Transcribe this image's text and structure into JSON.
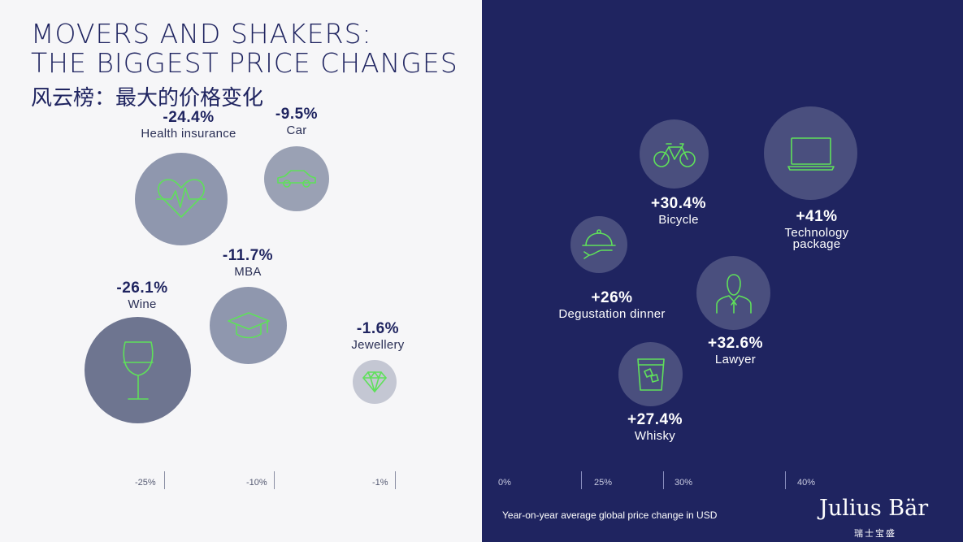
{
  "title_line1": "MOVERS AND SHAKERS:",
  "title_line2": "THE BIGGEST PRICE CHANGES",
  "subtitle_cn": "风云榜：最大的价格变化",
  "caption": "Year-on-year average global price change in USD",
  "brand": "Julius Bär",
  "brand_cn": "瑞士宝盛",
  "colors": {
    "left_bg": "#f6f6f8",
    "right_bg": "#1f2460",
    "icon_green": "#5fe05a",
    "bubble_left": "#8f97ae",
    "bubble_right": "#4a4f7e"
  },
  "chart_data": {
    "type": "scatter",
    "title": "MOVERS AND SHAKERS: THE BIGGEST PRICE CHANGES",
    "xlabel": "Year-on-year average global price change in USD",
    "ylabel": "",
    "tick_labels_negative": [
      "-25%",
      "-10%",
      "-1%"
    ],
    "tick_labels_positive": [
      "0%",
      "25%",
      "30%",
      "40%"
    ],
    "decreases": [
      {
        "name": "Health insurance",
        "pct_label": "-24.4%",
        "value": -24.4,
        "icon": "heart-pulse-icon"
      },
      {
        "name": "Car",
        "pct_label": "-9.5%",
        "value": -9.5,
        "icon": "car-icon"
      },
      {
        "name": "MBA",
        "pct_label": "-11.7%",
        "value": -11.7,
        "icon": "graduation-cap-icon"
      },
      {
        "name": "Wine",
        "pct_label": "-26.1%",
        "value": -26.1,
        "icon": "wine-glass-icon"
      },
      {
        "name": "Jewellery",
        "pct_label": "-1.6%",
        "value": -1.6,
        "icon": "diamond-icon"
      }
    ],
    "increases": [
      {
        "name": "Bicycle",
        "pct_label": "+30.4%",
        "value": 30.4,
        "icon": "bicycle-icon"
      },
      {
        "name": "Technology package",
        "name_line1": "Technology",
        "name_line2": "package",
        "pct_label": "+41%",
        "value": 41,
        "icon": "laptop-icon"
      },
      {
        "name": "Degustation dinner",
        "pct_label": "+26%",
        "value": 26,
        "icon": "cloche-icon"
      },
      {
        "name": "Lawyer",
        "pct_label": "+32.6%",
        "value": 32.6,
        "icon": "lawyer-icon"
      },
      {
        "name": "Whisky",
        "pct_label": "+27.4%",
        "value": 27.4,
        "icon": "whisky-glass-icon"
      }
    ]
  }
}
